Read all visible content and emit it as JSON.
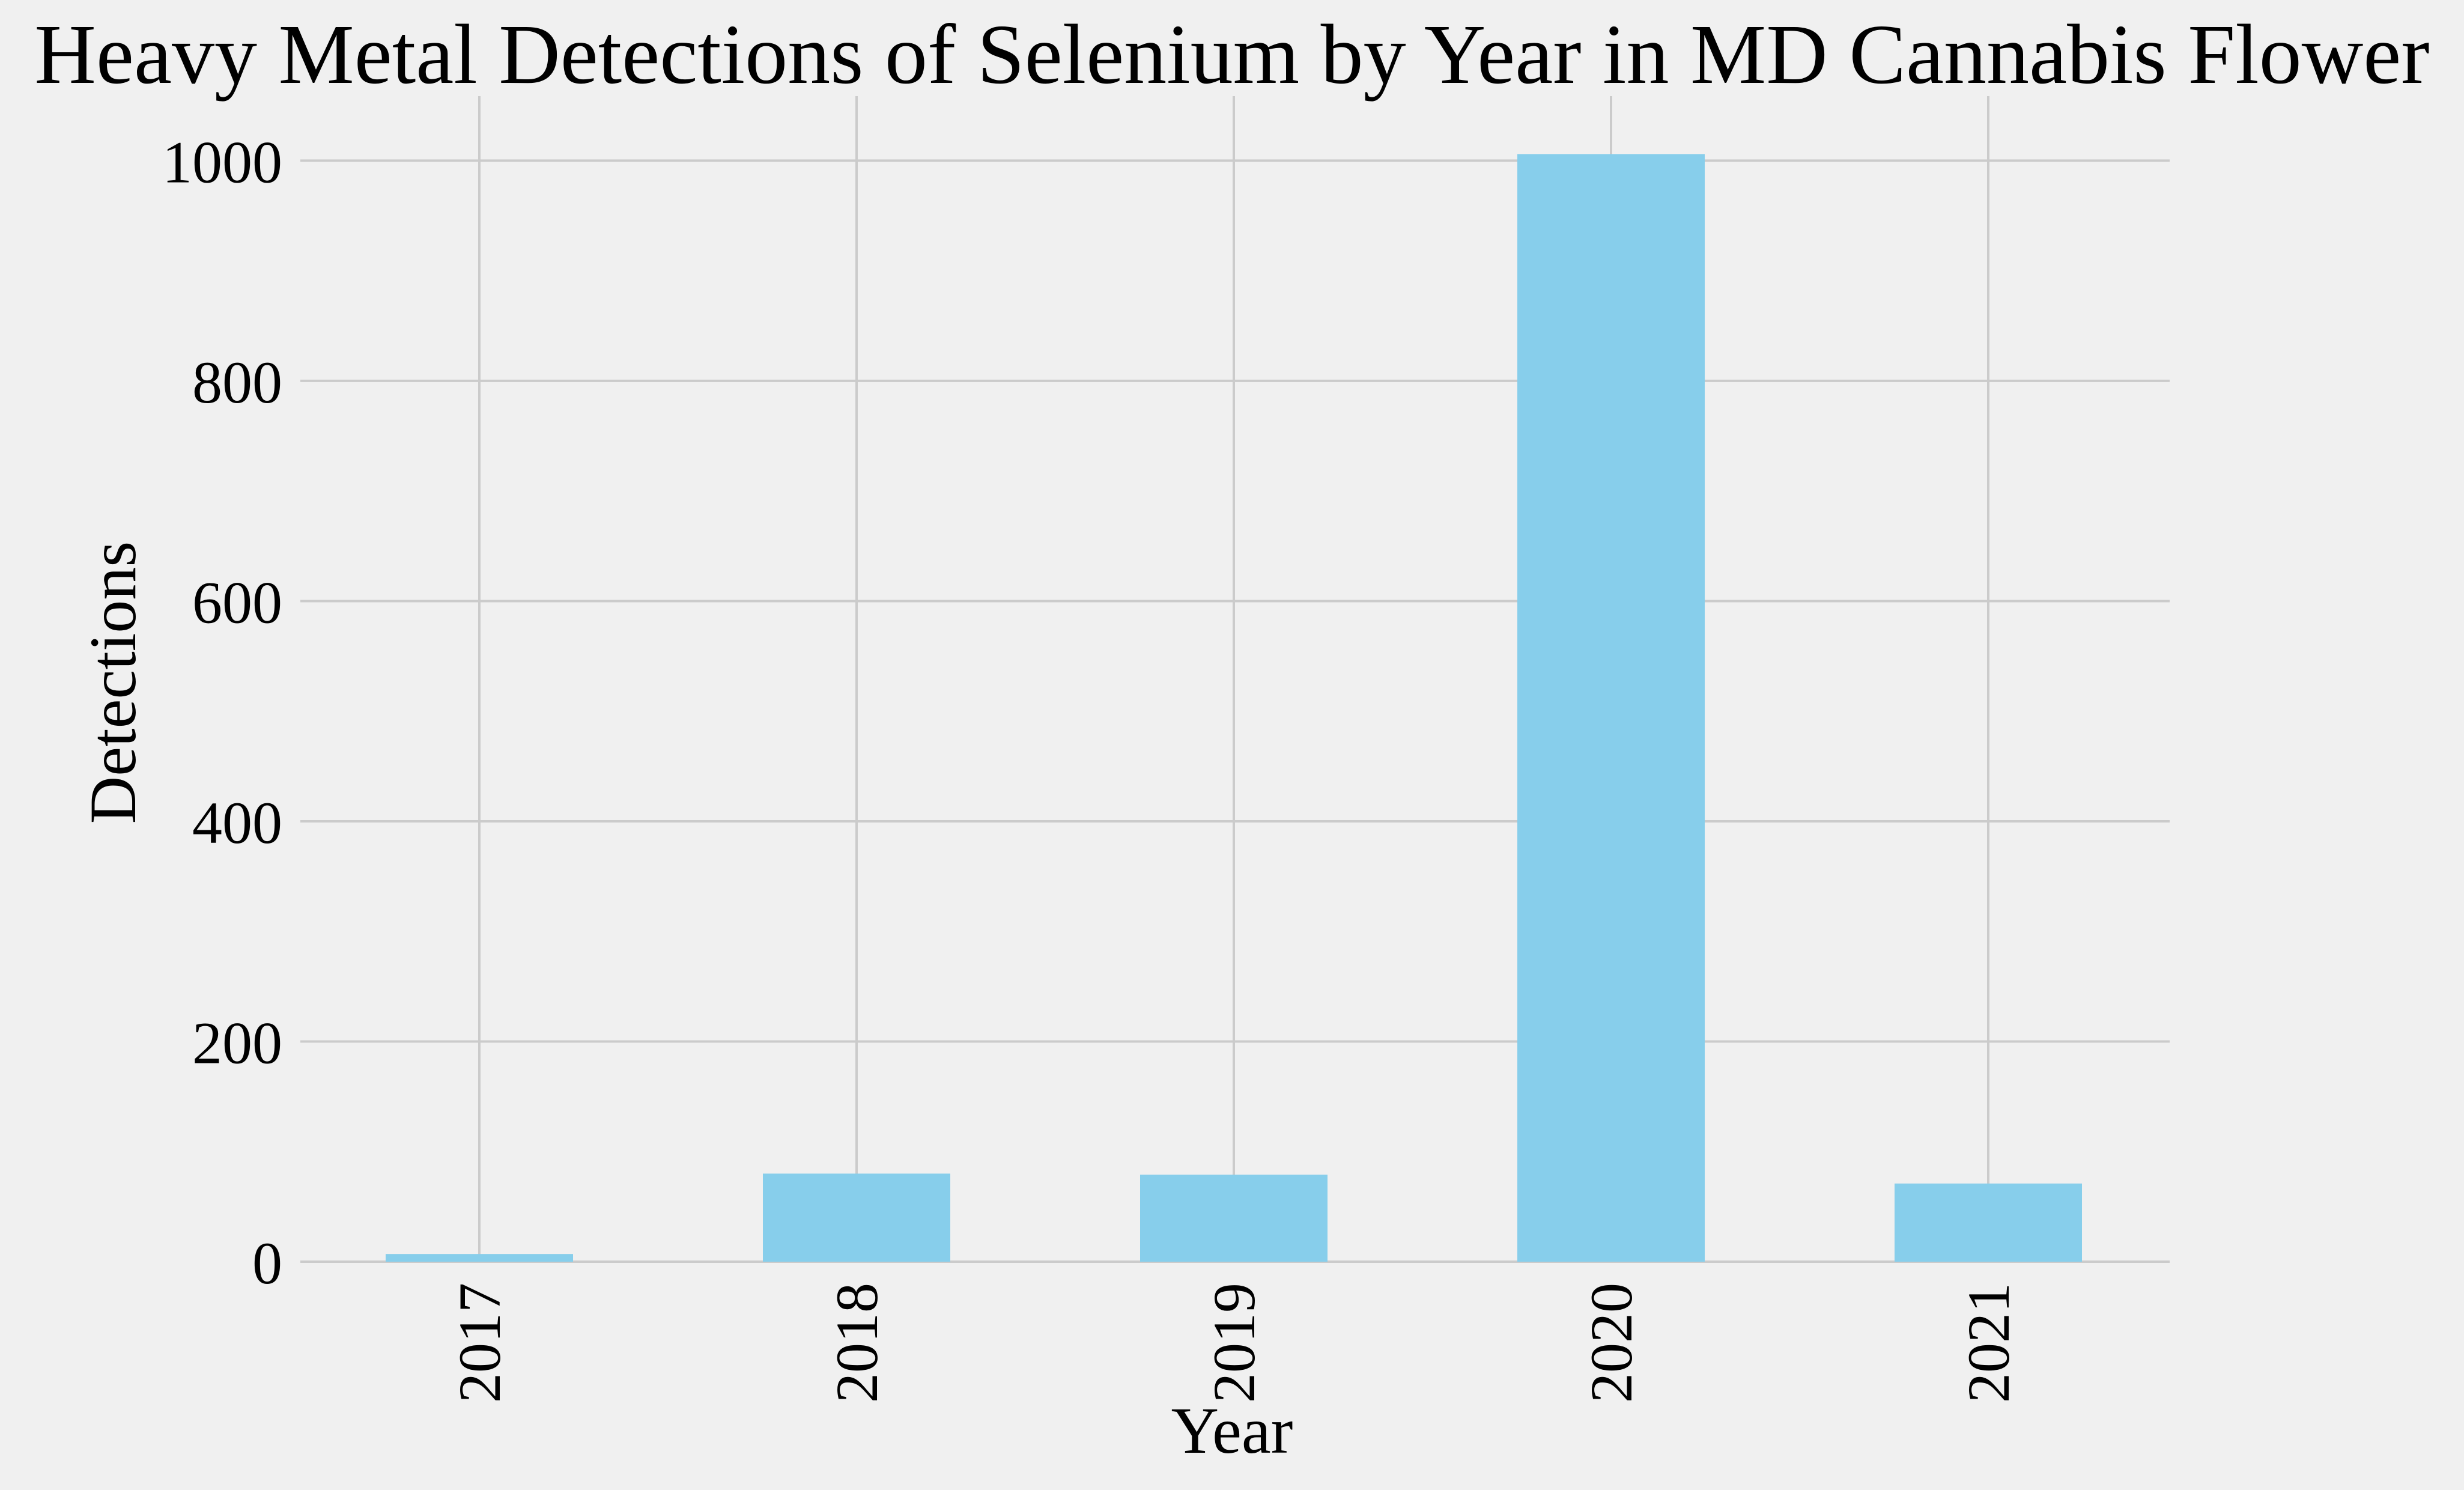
{
  "chart_data": {
    "type": "bar",
    "title": "Heavy Metal Detections of Selenium by Year in MD Cannabis Flower",
    "xlabel": "Year",
    "ylabel": "Detections",
    "categories": [
      "2017",
      "2018",
      "2019",
      "2020",
      "2021"
    ],
    "values": [
      7,
      80,
      79,
      1006,
      71
    ],
    "ylim": [
      0,
      1057
    ],
    "yticks": [
      0,
      200,
      400,
      600,
      800,
      1000
    ],
    "grid": true,
    "legend": "none",
    "colors": {
      "bar": "#87ceeb",
      "background": "#f0f0f0",
      "grid": "#cbcbcb",
      "text": "#000000"
    }
  }
}
